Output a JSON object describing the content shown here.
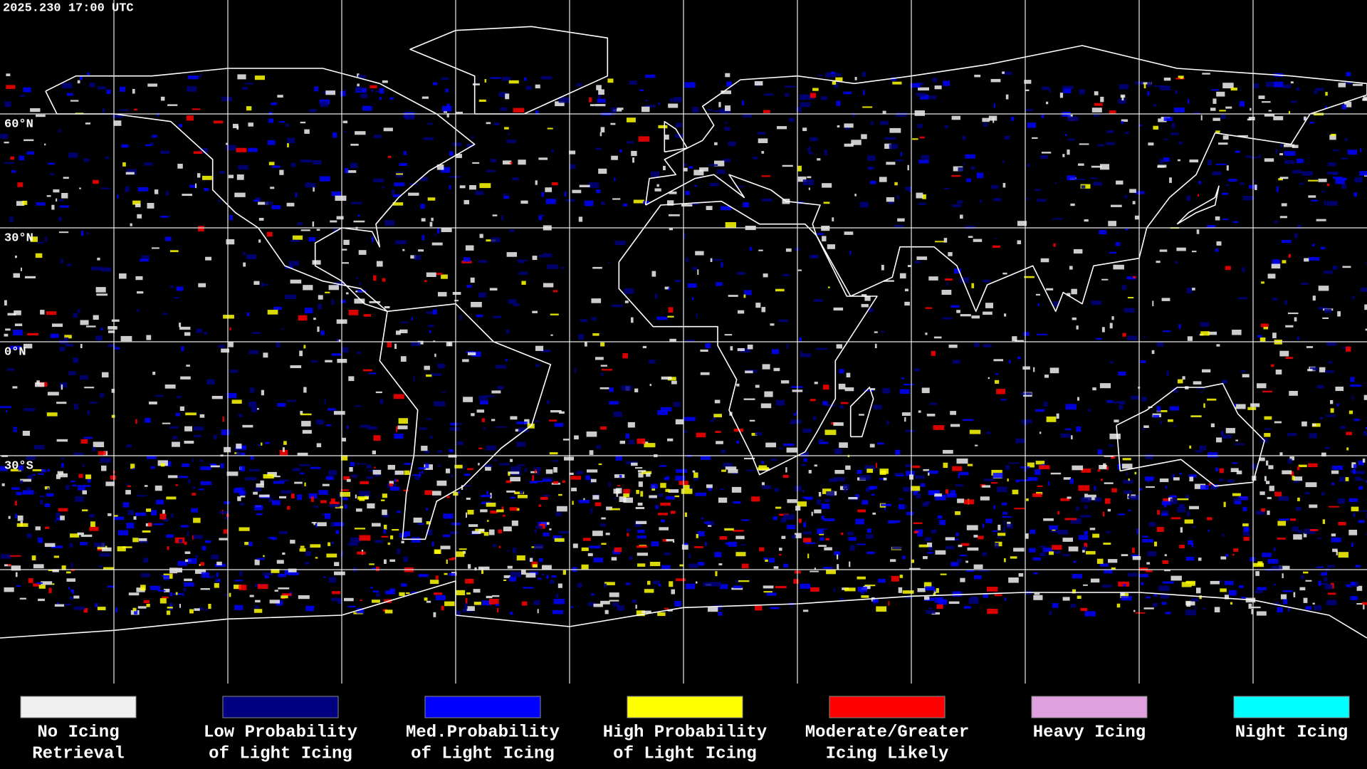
{
  "header": {
    "title": "2025.230 17:00 UTC"
  },
  "map": {
    "lat_labels": [
      "60°N",
      "30°N",
      "0°N",
      "30°S"
    ]
  },
  "legend": {
    "items": [
      {
        "lines": [
          "No Icing",
          "Retrieval"
        ],
        "color": "#f0f0f0"
      },
      {
        "lines": [
          "Low Probability",
          "of Light Icing"
        ],
        "color": "#000080"
      },
      {
        "lines": [
          "Med.Probability",
          "of Light Icing"
        ],
        "color": "#0000ff"
      },
      {
        "lines": [
          "High Probability",
          "of Light Icing"
        ],
        "color": "#ffff00"
      },
      {
        "lines": [
          "Moderate/Greater",
          "Icing Likely"
        ],
        "color": "#ff0000"
      },
      {
        "lines": [
          "Heavy Icing"
        ],
        "color": "#e0a0e0"
      },
      {
        "lines": [
          "Night Icing"
        ],
        "color": "#00ffff"
      }
    ]
  }
}
